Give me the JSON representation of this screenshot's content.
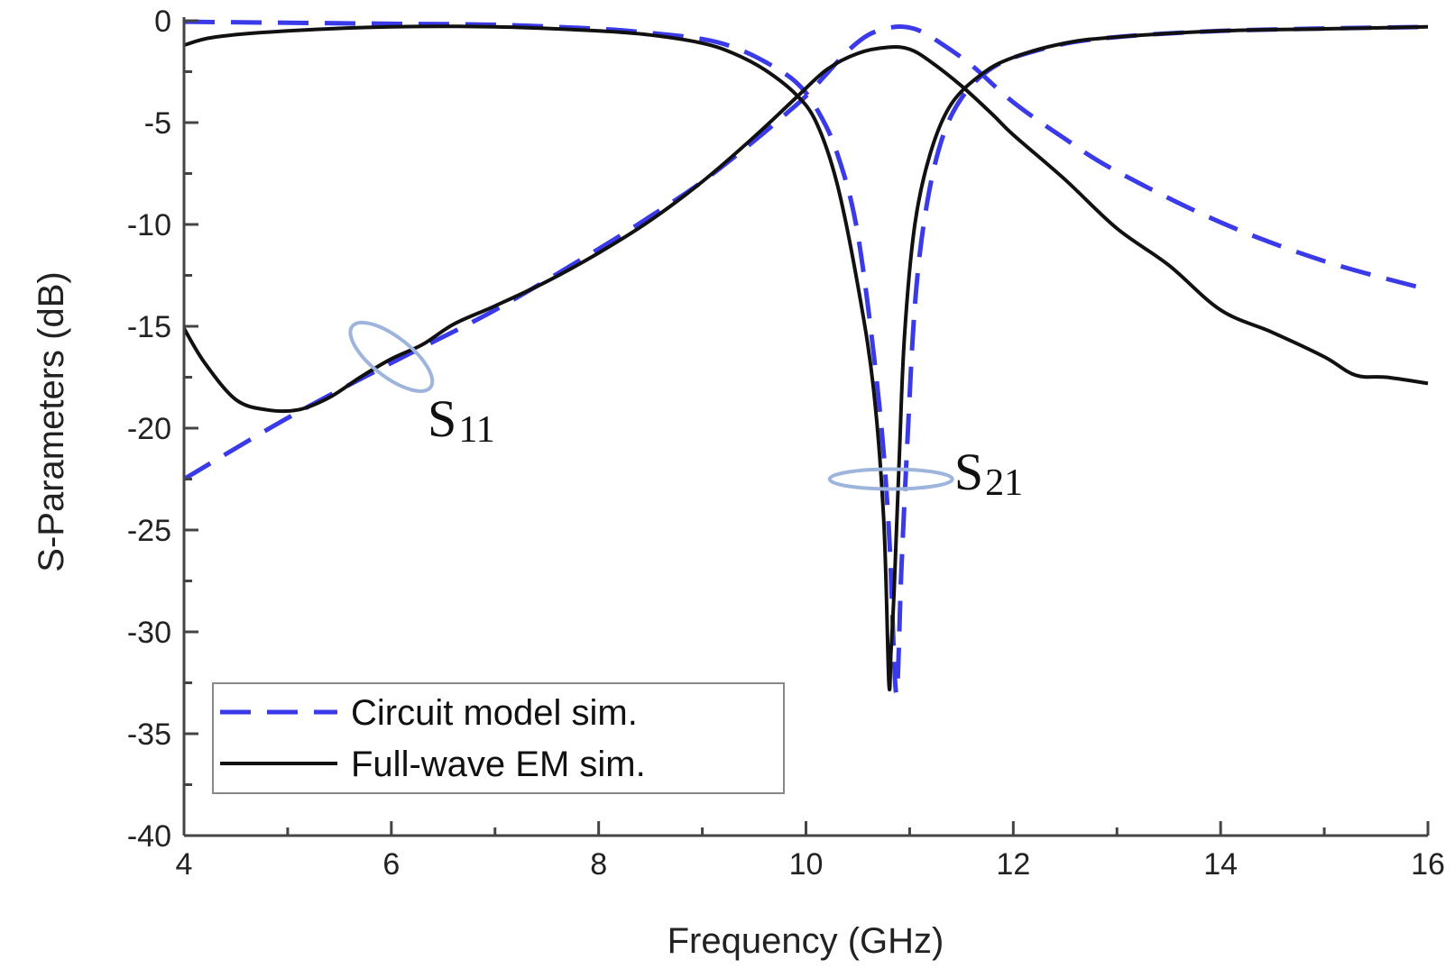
{
  "chart_data": {
    "type": "line",
    "xlabel": "Frequency (GHz)",
    "ylabel": "S-Parameters (dB)",
    "xlim": [
      4,
      16
    ],
    "ylim": [
      -40,
      0
    ],
    "xticks": [
      4,
      6,
      8,
      10,
      12,
      14,
      16
    ],
    "yticks": [
      0,
      -5,
      -10,
      -15,
      -20,
      -25,
      -30,
      -35,
      -40
    ],
    "grid": false,
    "legend_position": "bottom-left",
    "colors": {
      "circuit": "#3a3ae8",
      "fullwave": "#111111",
      "ellipse": "#9db4dc"
    },
    "legend": [
      {
        "label": "Circuit model sim.",
        "style": "dashed",
        "color": "#3a3ae8"
      },
      {
        "label": "Full-wave EM sim.",
        "style": "solid",
        "color": "#111111"
      }
    ],
    "annotations": [
      {
        "text": "S",
        "subscript": "11",
        "x": 6.35,
        "y": -20.4,
        "ellipse_center": [
          6.0,
          -16.5
        ]
      },
      {
        "text": "S",
        "subscript": "21",
        "x": 11.43,
        "y": -23.0,
        "ellipse_center": [
          10.82,
          -22.5
        ]
      }
    ],
    "series": [
      {
        "name": "Circuit model sim.",
        "parameter": "S11",
        "style": "dashed",
        "color": "#3a3ae8",
        "x": [
          4,
          5,
          6,
          7,
          8,
          8.5,
          9,
          9.5,
          9.8,
          10,
          10.2,
          10.4,
          10.6,
          10.8,
          10.95,
          11.1,
          11.3,
          11.6,
          12,
          12.5,
          13,
          14,
          15,
          16
        ],
        "y": [
          -22.5,
          -19.5,
          -16.8,
          -14.2,
          -11.2,
          -9.6,
          -7.9,
          -5.9,
          -4.6,
          -3.7,
          -2.6,
          -1.5,
          -0.7,
          -0.35,
          -0.3,
          -0.5,
          -1.1,
          -2.2,
          -4.0,
          -5.8,
          -7.4,
          -9.9,
          -11.8,
          -13.2
        ]
      },
      {
        "name": "Circuit model sim.",
        "parameter": "S21",
        "style": "dashed",
        "color": "#3a3ae8",
        "x": [
          4,
          5,
          6,
          7,
          8,
          8.5,
          9,
          9.3,
          9.6,
          9.9,
          10.1,
          10.3,
          10.5,
          10.7,
          10.8,
          10.87,
          10.92,
          10.98,
          11.05,
          11.15,
          11.3,
          11.5,
          11.8,
          12.2,
          12.8,
          14,
          16
        ],
        "y": [
          -0.05,
          -0.1,
          -0.15,
          -0.2,
          -0.4,
          -0.6,
          -0.9,
          -1.3,
          -2.0,
          -3.0,
          -4.3,
          -6.5,
          -10.5,
          -18.5,
          -25.0,
          -33.0,
          -27.0,
          -20.5,
          -14.0,
          -9.5,
          -6.0,
          -3.8,
          -2.3,
          -1.5,
          -0.9,
          -0.5,
          -0.3
        ]
      },
      {
        "name": "Full-wave EM sim.",
        "parameter": "S11",
        "style": "solid",
        "color": "#111111",
        "x": [
          4,
          4.2,
          4.5,
          4.8,
          5.1,
          5.4,
          5.7,
          6.0,
          6.3,
          6.6,
          7.0,
          7.5,
          8.0,
          8.5,
          9.0,
          9.5,
          9.9,
          10.2,
          10.5,
          10.8,
          11.0,
          11.2,
          11.5,
          11.8,
          12.0,
          12.5,
          13.0,
          13.5,
          14.0,
          14.5,
          15.0,
          15.3,
          15.6,
          16.0
        ],
        "y": [
          -15.1,
          -16.8,
          -18.6,
          -19.1,
          -19.1,
          -18.5,
          -17.5,
          -16.6,
          -15.9,
          -14.9,
          -14.0,
          -12.8,
          -11.4,
          -9.8,
          -7.9,
          -5.7,
          -3.8,
          -2.4,
          -1.6,
          -1.3,
          -1.4,
          -2.0,
          -3.2,
          -4.6,
          -5.6,
          -7.8,
          -10.2,
          -12.0,
          -14.2,
          -15.3,
          -16.5,
          -17.4,
          -17.5,
          -17.8
        ]
      },
      {
        "name": "Full-wave EM sim.",
        "parameter": "S21",
        "style": "solid",
        "color": "#111111",
        "x": [
          4,
          4.3,
          5,
          6,
          7,
          8,
          8.5,
          9,
          9.3,
          9.6,
          9.9,
          10.1,
          10.3,
          10.5,
          10.65,
          10.75,
          10.8,
          10.82,
          10.85,
          10.9,
          10.95,
          11.05,
          11.2,
          11.4,
          11.7,
          12.0,
          12.5,
          13.0,
          14.0,
          15.0,
          16.0
        ],
        "y": [
          -1.2,
          -0.8,
          -0.5,
          -0.3,
          -0.3,
          -0.5,
          -0.7,
          -1.1,
          -1.6,
          -2.4,
          -3.6,
          -5.0,
          -8.0,
          -13.0,
          -18.0,
          -24.5,
          -32.5,
          -31.0,
          -28.0,
          -21.5,
          -15.5,
          -10.0,
          -6.5,
          -4.1,
          -2.6,
          -1.8,
          -1.1,
          -0.8,
          -0.5,
          -0.4,
          -0.3
        ]
      }
    ]
  }
}
